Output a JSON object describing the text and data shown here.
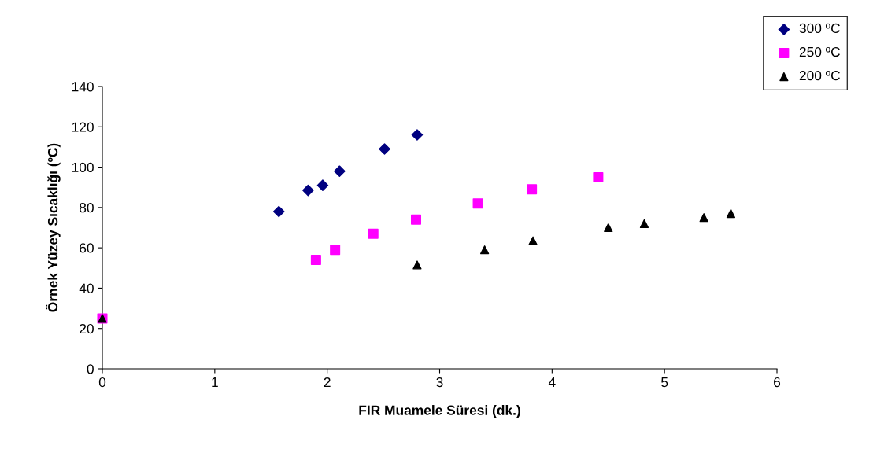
{
  "chart_data": {
    "type": "scatter",
    "xlabel": "FIR Muamele Süresi (dk.)",
    "ylabel": "Örnek Yüzey Sıcaklığı (ºC)",
    "xlim": [
      0,
      6
    ],
    "xticks": [
      0,
      1,
      2,
      3,
      4,
      5,
      6
    ],
    "ylim": [
      0,
      140
    ],
    "yticks": [
      0,
      20,
      40,
      60,
      80,
      100,
      120,
      140
    ],
    "grid": false,
    "legend": "top right",
    "series": [
      {
        "name": "300 ºC",
        "color": "#000080",
        "marker": "diamond",
        "x": [
          1.57,
          1.83,
          1.96,
          2.11,
          2.51,
          2.8
        ],
        "values": [
          78,
          88.5,
          91,
          98,
          109,
          116
        ]
      },
      {
        "name": "250 ºC",
        "color": "#ff00ff",
        "marker": "square",
        "x": [
          0,
          1.9,
          2.07,
          2.41,
          2.79,
          3.34,
          3.82,
          4.41
        ],
        "values": [
          25,
          54,
          59,
          67,
          74,
          82,
          89,
          95
        ]
      },
      {
        "name": "200 ºC",
        "color": "#000000",
        "marker": "triangle",
        "x": [
          0,
          2.8,
          3.4,
          3.83,
          4.5,
          4.82,
          5.35,
          5.59
        ],
        "values": [
          25,
          51.5,
          59,
          63.5,
          70,
          72,
          75,
          77
        ]
      }
    ]
  }
}
